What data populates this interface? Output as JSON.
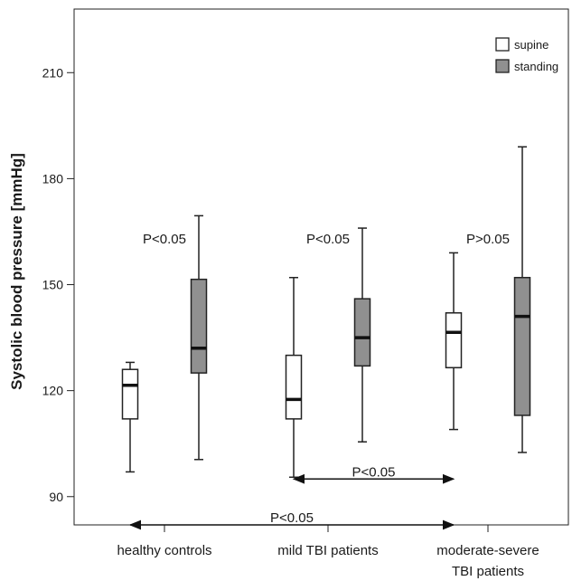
{
  "chart_data": {
    "type": "boxplot",
    "ylabel": "Systolic blood pressure [mmHg]",
    "xlabel": "",
    "ylim": [
      82,
      228
    ],
    "yticks": [
      90,
      120,
      150,
      180,
      210
    ],
    "grid": false,
    "legend_position": "top-right",
    "categories": [
      "healthy controls",
      "mild TBI patients",
      "moderate-severe TBI patients"
    ],
    "category_lines": [
      [
        "healthy controls"
      ],
      [
        "mild TBI patients"
      ],
      [
        "moderate-severe",
        "TBI patients"
      ]
    ],
    "series": [
      {
        "name": "supine",
        "color": "#ffffff",
        "boxes": [
          {
            "min": 97,
            "q1": 112,
            "median": 121.5,
            "q3": 126,
            "max": 128
          },
          {
            "min": 95.5,
            "q1": 112,
            "median": 117.5,
            "q3": 130,
            "max": 152
          },
          {
            "min": 109,
            "q1": 126.5,
            "median": 136.5,
            "q3": 142,
            "max": 159
          }
        ]
      },
      {
        "name": "standing",
        "color": "#909090",
        "boxes": [
          {
            "min": 100.5,
            "q1": 125,
            "median": 132,
            "q3": 151.5,
            "max": 169.5
          },
          {
            "min": 105.5,
            "q1": 127,
            "median": 135,
            "q3": 146,
            "max": 166
          },
          {
            "min": 102.5,
            "q1": 113,
            "median": 141,
            "q3": 152,
            "max": 189
          }
        ]
      }
    ],
    "annotations": [
      {
        "text": "P<0.05",
        "category": 0,
        "y": 163
      },
      {
        "text": "P<0.05",
        "category": 1,
        "y": 163
      },
      {
        "text": "P>0.05",
        "category": 2,
        "y": 163
      }
    ],
    "comparison_arrows": [
      {
        "text": "P<0.05",
        "from_category": 1,
        "to_category": 2,
        "y": 95,
        "label_y": 97
      },
      {
        "text": "P<0.05",
        "from_category": 0,
        "to_category": 2,
        "y": 82,
        "label_y": 84
      }
    ]
  }
}
